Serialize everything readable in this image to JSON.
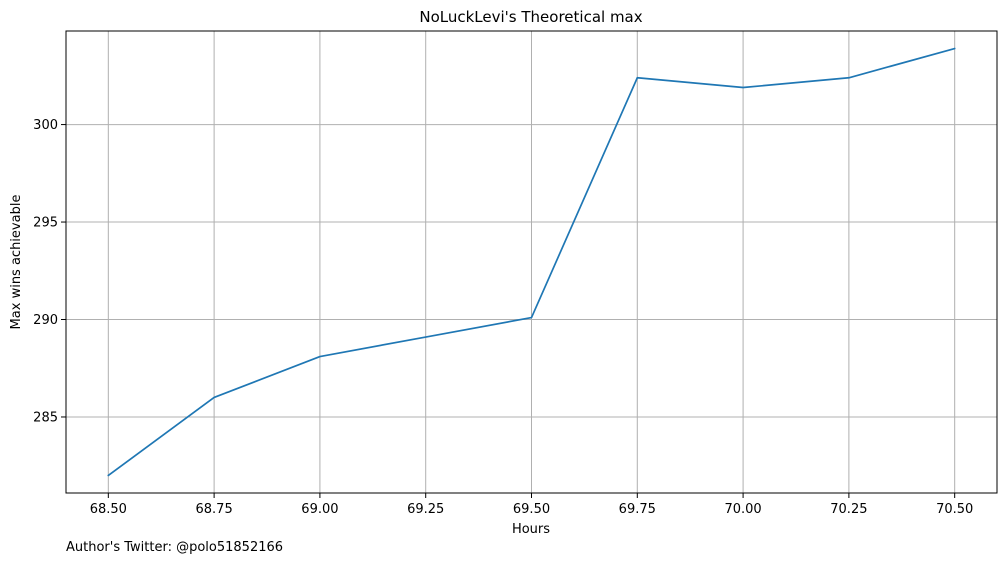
{
  "chart_data": {
    "type": "line",
    "title": "NoLuckLevi's Theoretical max",
    "xlabel": "Hours",
    "ylabel": "Max wins achievable",
    "footnote": "Author's Twitter: @polo51852166",
    "x": [
      68.5,
      68.75,
      69.0,
      69.25,
      69.5,
      69.75,
      70.0,
      70.25,
      70.5
    ],
    "series": [
      {
        "values": [
          282.0,
          286.0,
          288.1,
          289.1,
          290.1,
          302.4,
          301.9,
          302.4,
          303.9
        ],
        "color": "#1f77b4"
      }
    ],
    "xticks": [
      68.5,
      68.75,
      69.0,
      69.25,
      69.5,
      69.75,
      70.0,
      70.25,
      70.5
    ],
    "xtick_labels": [
      "68.50",
      "68.75",
      "69.00",
      "69.25",
      "69.50",
      "69.75",
      "70.00",
      "70.25",
      "70.50"
    ],
    "yticks": [
      285,
      290,
      295,
      300
    ],
    "ytick_labels": [
      "285",
      "290",
      "295",
      "300"
    ],
    "xlim": [
      68.4,
      70.6
    ],
    "ylim": [
      281.1,
      304.8
    ],
    "grid": true,
    "grid_color": "#b0b0b0"
  }
}
